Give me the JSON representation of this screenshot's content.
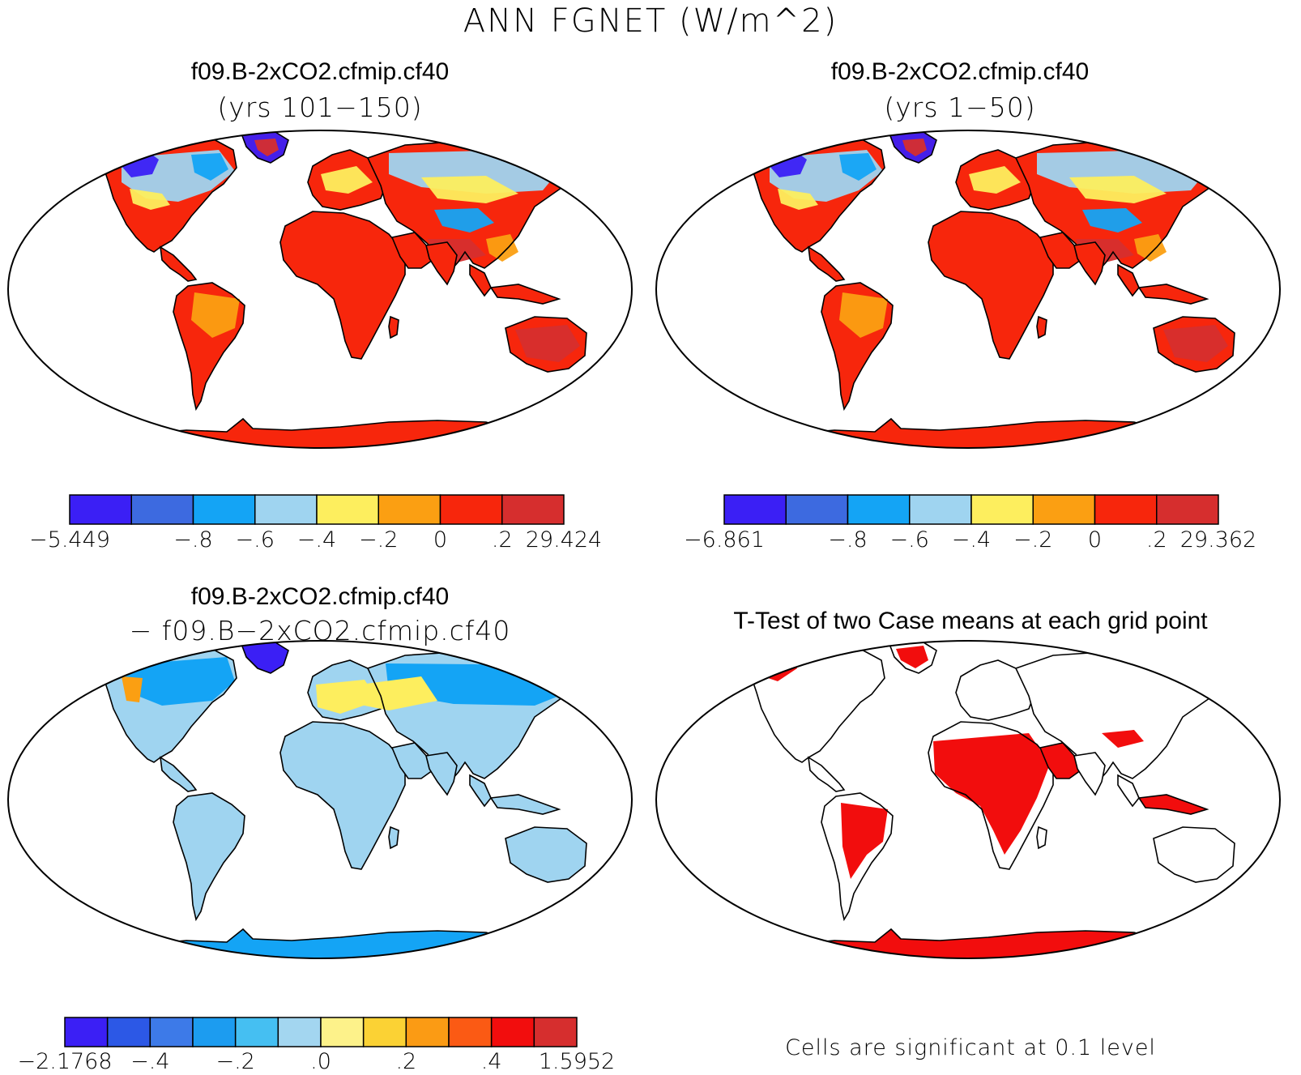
{
  "figure_title": "ANN FGNET (W/m^2)",
  "panels": [
    {
      "title": "f09.B-2xCO2.cfmip.cf40",
      "subtitle": "(yrs 101−150)",
      "map_name": "case1-map",
      "colorbar": {
        "colors": [
          "#3b1ff5",
          "#3d6ae0",
          "#14a4f5",
          "#9fd4f0",
          "#fdee5e",
          "#fb9f12",
          "#f7260c",
          "#d62e2e"
        ],
        "labels": [
          "−5.449",
          "−.8",
          "−.6",
          "−.4",
          "−.2",
          "0",
          ".2",
          "29.424"
        ],
        "label_edges": [
          0,
          2,
          3,
          4,
          5,
          6,
          7,
          8
        ]
      }
    },
    {
      "title": "f09.B-2xCO2.cfmip.cf40",
      "subtitle": "(yrs 1−50)",
      "map_name": "case2-map",
      "colorbar": {
        "colors": [
          "#3b1ff5",
          "#3d6ae0",
          "#14a4f5",
          "#9fd4f0",
          "#fdee5e",
          "#fb9f12",
          "#f7260c",
          "#d62e2e"
        ],
        "labels": [
          "−6.861",
          "−.8",
          "−.6",
          "−.4",
          "−.2",
          "0",
          ".2",
          "29.362"
        ],
        "label_edges": [
          0,
          2,
          3,
          4,
          5,
          6,
          7,
          8
        ]
      }
    },
    {
      "title": "f09.B-2xCO2.cfmip.cf40",
      "subtitle": "− f09.B−2xCO2.cfmip.cf40",
      "map_name": "difference-map",
      "colorbar": {
        "colors": [
          "#3b1ff5",
          "#2c58e6",
          "#3d7ae8",
          "#1c9cf0",
          "#45bff2",
          "#a3d6f0",
          "#fdf28a",
          "#fbd234",
          "#fb9b14",
          "#fb5a14",
          "#f20d0d",
          "#d62e2e"
        ],
        "labels": [
          "−2.1768",
          "−.4",
          "−.2",
          ".0",
          ".2",
          ".4",
          "1.5952"
        ],
        "label_edges": [
          0,
          2,
          4,
          6,
          8,
          10,
          12
        ]
      }
    },
    {
      "title": "T-Test of two Case means at each grid point",
      "map_name": "ttest-map",
      "footnote": "Cells are significant at 0.1 level"
    }
  ],
  "colors": {
    "land_warm": "#f7260c",
    "land_hot": "#d62e2e",
    "land_orange": "#fb9f12",
    "land_yellow": "#fdee5e",
    "land_lightblue": "#9fd4f0",
    "land_blue": "#14a4f5",
    "land_deepblue": "#3b1ff5",
    "significant": "#f20d0d",
    "ocean": "#ffffff",
    "outline": "#000000"
  }
}
